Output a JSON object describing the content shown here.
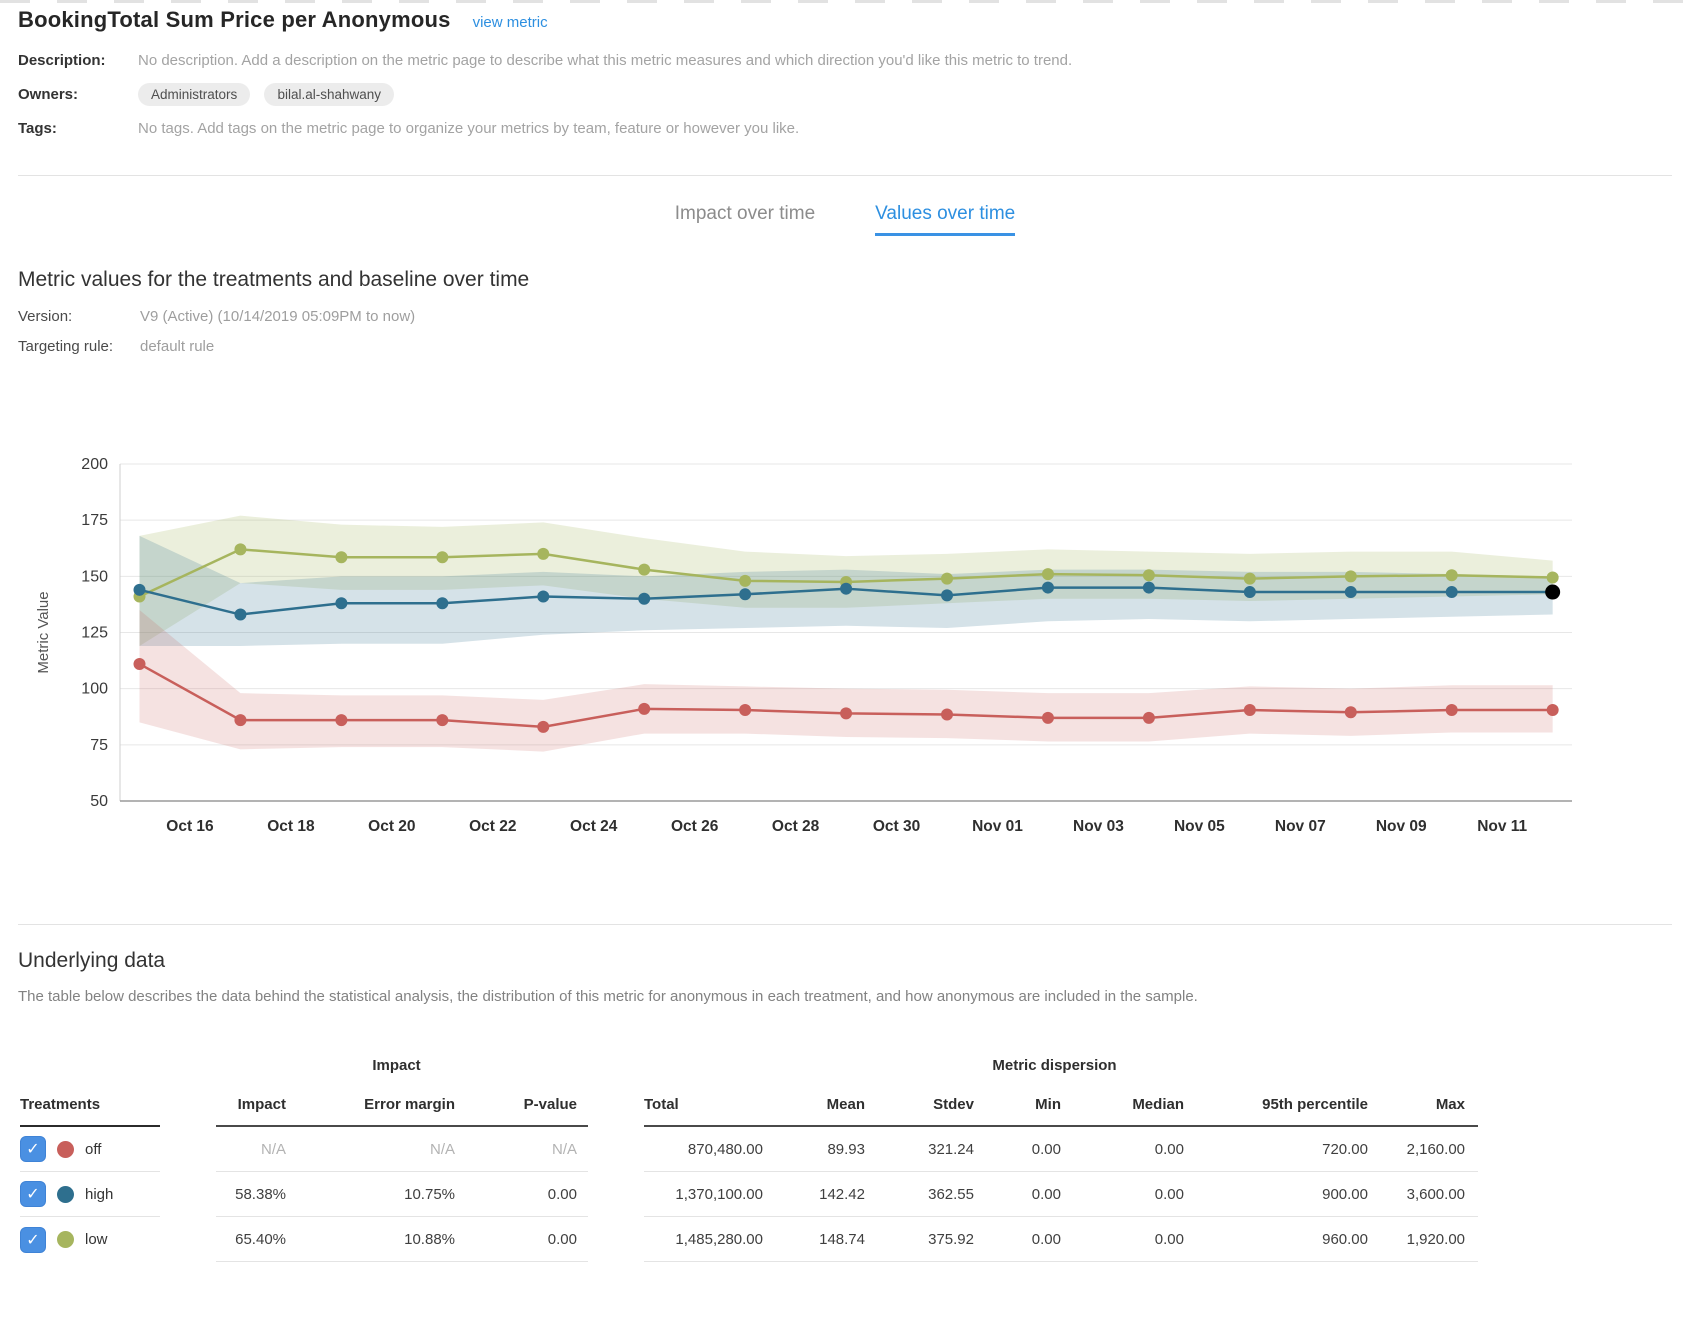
{
  "colors": {
    "accent_blue": "#2d8fe0",
    "checkbox_blue": "#4a90e2"
  },
  "header": {
    "title": "BookingTotal Sum Price per Anonymous",
    "view_metric_label": "view metric",
    "description_label": "Description:",
    "description_value": "No description. Add a description on the metric page to describe what this metric measures and which direction you'd like this metric to trend.",
    "owners_label": "Owners:",
    "owners": [
      "Administrators",
      "bilal.al-shahwany"
    ],
    "tags_label": "Tags:",
    "tags_value": "No tags. Add tags on the metric page to organize your metrics by team, feature or however you like."
  },
  "tabs": [
    {
      "label": "Impact over time",
      "active": false
    },
    {
      "label": "Values over time",
      "active": true
    }
  ],
  "section": {
    "heading": "Metric values for the treatments and baseline over time",
    "version_label": "Version:",
    "version_value": "V9 (Active) (10/14/2019 05:09PM to now)",
    "targeting_label": "Targeting rule:",
    "targeting_value": "default rule"
  },
  "chart_data": {
    "type": "line",
    "ylabel": "Metric Value",
    "ylim": [
      50,
      200
    ],
    "yticks": [
      50,
      75,
      100,
      125,
      150,
      175,
      200
    ],
    "grid": true,
    "xticks": [
      {
        "day": 1,
        "label": "Oct 16"
      },
      {
        "day": 3,
        "label": "Oct 18"
      },
      {
        "day": 5,
        "label": "Oct 20"
      },
      {
        "day": 7,
        "label": "Oct 22"
      },
      {
        "day": 9,
        "label": "Oct 24"
      },
      {
        "day": 11,
        "label": "Oct 26"
      },
      {
        "day": 13,
        "label": "Oct 28"
      },
      {
        "day": 15,
        "label": "Oct 30"
      },
      {
        "day": 17,
        "label": "Nov 01"
      },
      {
        "day": 19,
        "label": "Nov 03"
      },
      {
        "day": 21,
        "label": "Nov 05"
      },
      {
        "day": 23,
        "label": "Nov 07"
      },
      {
        "day": 25,
        "label": "Nov 09"
      },
      {
        "day": 27,
        "label": "Nov 11"
      }
    ],
    "point_days": [
      0,
      2,
      4,
      6,
      8,
      10,
      12,
      14,
      16,
      18,
      20,
      22,
      24,
      26,
      28
    ],
    "point_dates": [
      "Oct 15",
      "Oct 17",
      "Oct 19",
      "Oct 21",
      "Oct 23",
      "Oct 25",
      "Oct 27",
      "Oct 29",
      "Oct 31",
      "Nov 02",
      "Nov 04",
      "Nov 06",
      "Nov 08",
      "Nov 10",
      "Nov 12"
    ],
    "series": [
      {
        "name": "off",
        "color": "#c85f5b",
        "band_color": "rgba(200,95,91,0.18)",
        "values": [
          111,
          86,
          86,
          86,
          83,
          91,
          90.5,
          89,
          88.5,
          87,
          87,
          90.5,
          89.5,
          90.5,
          90.5
        ],
        "upper": [
          135,
          98,
          97,
          97,
          95,
          102,
          101,
          100,
          99.5,
          98,
          98,
          101,
          100,
          101.5,
          101.5
        ],
        "lower": [
          85,
          73,
          74,
          74,
          72,
          80,
          80,
          78.5,
          78,
          76.5,
          76.5,
          80,
          79,
          80.5,
          80.5
        ]
      },
      {
        "name": "high",
        "color": "#2e6f8e",
        "band_color": "rgba(46,111,142,0.20)",
        "values": [
          144,
          133,
          138,
          138,
          141,
          140,
          142,
          144.5,
          141.5,
          145,
          145,
          143,
          143,
          143,
          143
        ],
        "upper": [
          168,
          147,
          150,
          150,
          152,
          150,
          152,
          153,
          151,
          153,
          153,
          152,
          152,
          151,
          150
        ],
        "lower": [
          119,
          119,
          120,
          120,
          124,
          126,
          127,
          128,
          127,
          130,
          131,
          130,
          131,
          132,
          133
        ]
      },
      {
        "name": "low",
        "color": "#a6b55e",
        "band_color": "rgba(166,181,94,0.22)",
        "values": [
          141,
          162,
          158.5,
          158.5,
          160,
          153,
          148,
          147.5,
          149,
          151,
          150.5,
          149,
          150,
          150.5,
          149.5
        ],
        "upper": [
          168,
          177,
          173,
          172,
          174,
          167,
          161,
          159,
          160,
          162,
          161,
          160,
          161,
          161,
          157
        ],
        "lower": [
          119,
          147,
          144,
          144,
          146,
          140,
          136,
          136,
          138,
          140,
          140,
          139,
          140,
          141,
          142
        ]
      }
    ],
    "current_point": {
      "series": "high",
      "index": 14,
      "color": "#000000"
    }
  },
  "underlying": {
    "heading": "Underlying data",
    "description": "The table below describes the data behind the statistical analysis, the distribution of this metric for anonymous in each treatment, and how anonymous are included in the sample.",
    "table": {
      "treatments_header": "Treatments",
      "impact_group_header": "Impact",
      "dispersion_group_header": "Metric dispersion",
      "impact_columns": [
        "Impact",
        "Error margin",
        "P-value"
      ],
      "dispersion_columns": [
        "Total",
        "Mean",
        "Stdev",
        "Min",
        "Median",
        "95th percentile",
        "Max"
      ],
      "rows": [
        {
          "name": "off",
          "color": "#c85f5b",
          "checked": true,
          "impact": [
            "N/A",
            "N/A",
            "N/A"
          ],
          "dispersion": [
            "870,480.00",
            "89.93",
            "321.24",
            "0.00",
            "0.00",
            "720.00",
            "2,160.00"
          ]
        },
        {
          "name": "high",
          "color": "#2e6f8e",
          "checked": true,
          "impact": [
            "58.38%",
            "10.75%",
            "0.00"
          ],
          "dispersion": [
            "1,370,100.00",
            "142.42",
            "362.55",
            "0.00",
            "0.00",
            "900.00",
            "3,600.00"
          ]
        },
        {
          "name": "low",
          "color": "#a6b55e",
          "checked": true,
          "impact": [
            "65.40%",
            "10.88%",
            "0.00"
          ],
          "dispersion": [
            "1,485,280.00",
            "148.74",
            "375.92",
            "0.00",
            "0.00",
            "960.00",
            "1,920.00"
          ]
        }
      ]
    }
  }
}
